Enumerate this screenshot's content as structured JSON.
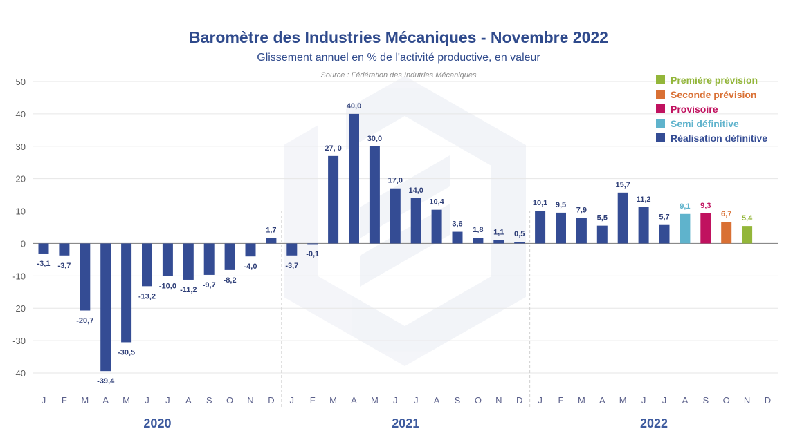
{
  "chart_data": {
    "type": "bar",
    "title": "Baromètre des Industries Mécaniques - Novembre 2022",
    "subtitle": "Glissement annuel en % de l'activité productive, en valeur",
    "source": "Source : Fédération des Indutries Mécaniques",
    "ylim": [
      -40,
      50
    ],
    "yticks": [
      -40,
      -30,
      -20,
      -10,
      0,
      10,
      20,
      30,
      40,
      50
    ],
    "grid": true,
    "legend_position": "top-right",
    "years": [
      "2020",
      "2021",
      "2022"
    ],
    "months": [
      "J",
      "F",
      "M",
      "A",
      "M",
      "J",
      "J",
      "A",
      "S",
      "O",
      "N",
      "D"
    ],
    "legend": [
      {
        "key": "premiere",
        "label": "Première prévision",
        "color": "#93b63a"
      },
      {
        "key": "seconde",
        "label": "Seconde prévision",
        "color": "#d97034"
      },
      {
        "key": "provisoire",
        "label": "Provisoire",
        "color": "#c0125f"
      },
      {
        "key": "semi",
        "label": "Semi définitive",
        "color": "#5fb3cc"
      },
      {
        "key": "definitive",
        "label": "Réalisation définitive",
        "color": "#344c94"
      }
    ],
    "bars": [
      {
        "value": -3.1,
        "label": "-3,1",
        "status": "definitive"
      },
      {
        "value": -3.7,
        "label": "-3,7",
        "status": "definitive"
      },
      {
        "value": -20.7,
        "label": "-20,7",
        "status": "definitive"
      },
      {
        "value": -39.4,
        "label": "-39,4",
        "status": "definitive"
      },
      {
        "value": -30.5,
        "label": "-30,5",
        "status": "definitive"
      },
      {
        "value": -13.2,
        "label": "-13,2",
        "status": "definitive"
      },
      {
        "value": -10.0,
        "label": "-10,0",
        "status": "definitive"
      },
      {
        "value": -11.2,
        "label": "-11,2",
        "status": "definitive"
      },
      {
        "value": -9.7,
        "label": "-9,7",
        "status": "definitive"
      },
      {
        "value": -8.2,
        "label": "-8,2",
        "status": "definitive"
      },
      {
        "value": -4.0,
        "label": "-4,0",
        "status": "definitive"
      },
      {
        "value": 1.7,
        "label": "1,7",
        "status": "definitive"
      },
      {
        "value": -3.7,
        "label": "-3,7",
        "status": "definitive"
      },
      {
        "value": -0.1,
        "label": "-0,1",
        "status": "definitive"
      },
      {
        "value": 27.0,
        "label": "27, 0",
        "status": "definitive"
      },
      {
        "value": 40.0,
        "label": "40,0",
        "status": "definitive"
      },
      {
        "value": 30.0,
        "label": "30,0",
        "status": "definitive"
      },
      {
        "value": 17.0,
        "label": "17,0",
        "status": "definitive"
      },
      {
        "value": 14.0,
        "label": "14,0",
        "status": "definitive"
      },
      {
        "value": 10.4,
        "label": "10,4",
        "status": "definitive"
      },
      {
        "value": 3.6,
        "label": "3,6",
        "status": "definitive"
      },
      {
        "value": 1.8,
        "label": "1,8",
        "status": "definitive"
      },
      {
        "value": 1.1,
        "label": "1,1",
        "status": "definitive"
      },
      {
        "value": 0.5,
        "label": "0,5",
        "status": "definitive"
      },
      {
        "value": 10.1,
        "label": "10,1",
        "status": "definitive"
      },
      {
        "value": 9.5,
        "label": "9,5",
        "status": "definitive"
      },
      {
        "value": 7.9,
        "label": "7,9",
        "status": "definitive"
      },
      {
        "value": 5.5,
        "label": "5,5",
        "status": "definitive"
      },
      {
        "value": 15.7,
        "label": "15,7",
        "status": "definitive"
      },
      {
        "value": 11.2,
        "label": "11,2",
        "status": "definitive"
      },
      {
        "value": 5.7,
        "label": "5,7",
        "status": "definitive"
      },
      {
        "value": 9.1,
        "label": "9,1",
        "status": "semi"
      },
      {
        "value": 9.3,
        "label": "9,3",
        "status": "provisoire"
      },
      {
        "value": 6.7,
        "label": "6,7",
        "status": "seconde"
      },
      {
        "value": 5.4,
        "label": "5,4",
        "status": "premiere"
      }
    ]
  }
}
